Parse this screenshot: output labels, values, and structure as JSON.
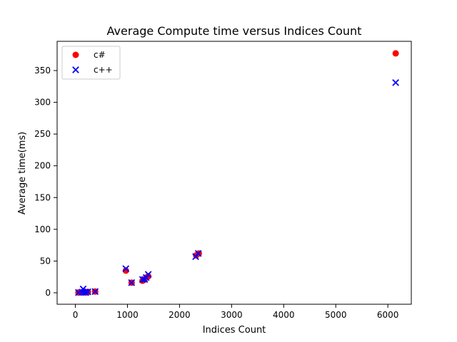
{
  "chart_data": {
    "type": "scatter",
    "title": "Average Compute time versus Indices Count",
    "xlabel": "Indices Count",
    "ylabel": "Average time(ms)",
    "xlim": [
      -350,
      6450
    ],
    "ylim": [
      -18,
      396
    ],
    "xticks": [
      0,
      1000,
      2000,
      3000,
      4000,
      5000,
      6000
    ],
    "yticks": [
      0,
      50,
      100,
      150,
      200,
      250,
      300,
      350
    ],
    "grid": false,
    "legend_position": "top-left",
    "series": [
      {
        "name": "c#",
        "marker": "circle",
        "color": "#ff0000",
        "points": [
          [
            60,
            0.5
          ],
          [
            130,
            1
          ],
          [
            160,
            2
          ],
          [
            180,
            1
          ],
          [
            200,
            0.5
          ],
          [
            240,
            1.5
          ],
          [
            380,
            2
          ],
          [
            970,
            35
          ],
          [
            1080,
            16
          ],
          [
            1290,
            19
          ],
          [
            1330,
            21
          ],
          [
            1360,
            24
          ],
          [
            1400,
            26
          ],
          [
            2320,
            59
          ],
          [
            2370,
            62
          ],
          [
            6150,
            377
          ]
        ]
      },
      {
        "name": "c++",
        "marker": "x",
        "color": "#0000ff",
        "points": [
          [
            60,
            0.5
          ],
          [
            130,
            1
          ],
          [
            150,
            6
          ],
          [
            180,
            1
          ],
          [
            200,
            0.5
          ],
          [
            240,
            1.5
          ],
          [
            380,
            2
          ],
          [
            970,
            38
          ],
          [
            1080,
            16
          ],
          [
            1290,
            21
          ],
          [
            1330,
            21
          ],
          [
            1360,
            24
          ],
          [
            1400,
            29
          ],
          [
            2310,
            57
          ],
          [
            2360,
            62
          ],
          [
            6150,
            331
          ]
        ]
      }
    ]
  }
}
